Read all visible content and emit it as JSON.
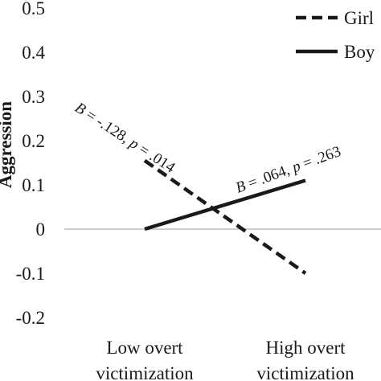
{
  "chart_data": {
    "type": "line",
    "ylabel": "Aggression",
    "ylim": [
      -0.2,
      0.5
    ],
    "yticks": [
      -0.2,
      -0.1,
      0,
      0.1,
      0.2,
      0.3,
      0.4,
      0.5
    ],
    "ytick_labels": [
      "-0.2",
      "-0.1",
      "0",
      "0.1",
      "0.2",
      "0.3",
      "0.4",
      "0.5"
    ],
    "categories": [
      "Low overt victimization",
      "High overt victimization"
    ],
    "category_lines": [
      [
        "Low overt",
        "victimization"
      ],
      [
        "High overt",
        "victimization"
      ]
    ],
    "series": [
      {
        "name": "Girl",
        "style": "dashed",
        "values": [
          0.155,
          -0.1
        ]
      },
      {
        "name": "Boy",
        "style": "solid",
        "values": [
          0.0,
          0.11
        ]
      }
    ],
    "annotations": [
      {
        "series": "Girl",
        "parts": [
          "B",
          " = -.128, ",
          "p",
          " = .014"
        ]
      },
      {
        "series": "Boy",
        "parts": [
          "B",
          " = .064, ",
          "p",
          " = .263"
        ]
      }
    ],
    "zero_line": true,
    "legend_position": "top-right",
    "colors": {
      "line": "#1a1a1a",
      "zero_line": "#bfbfbf"
    }
  }
}
